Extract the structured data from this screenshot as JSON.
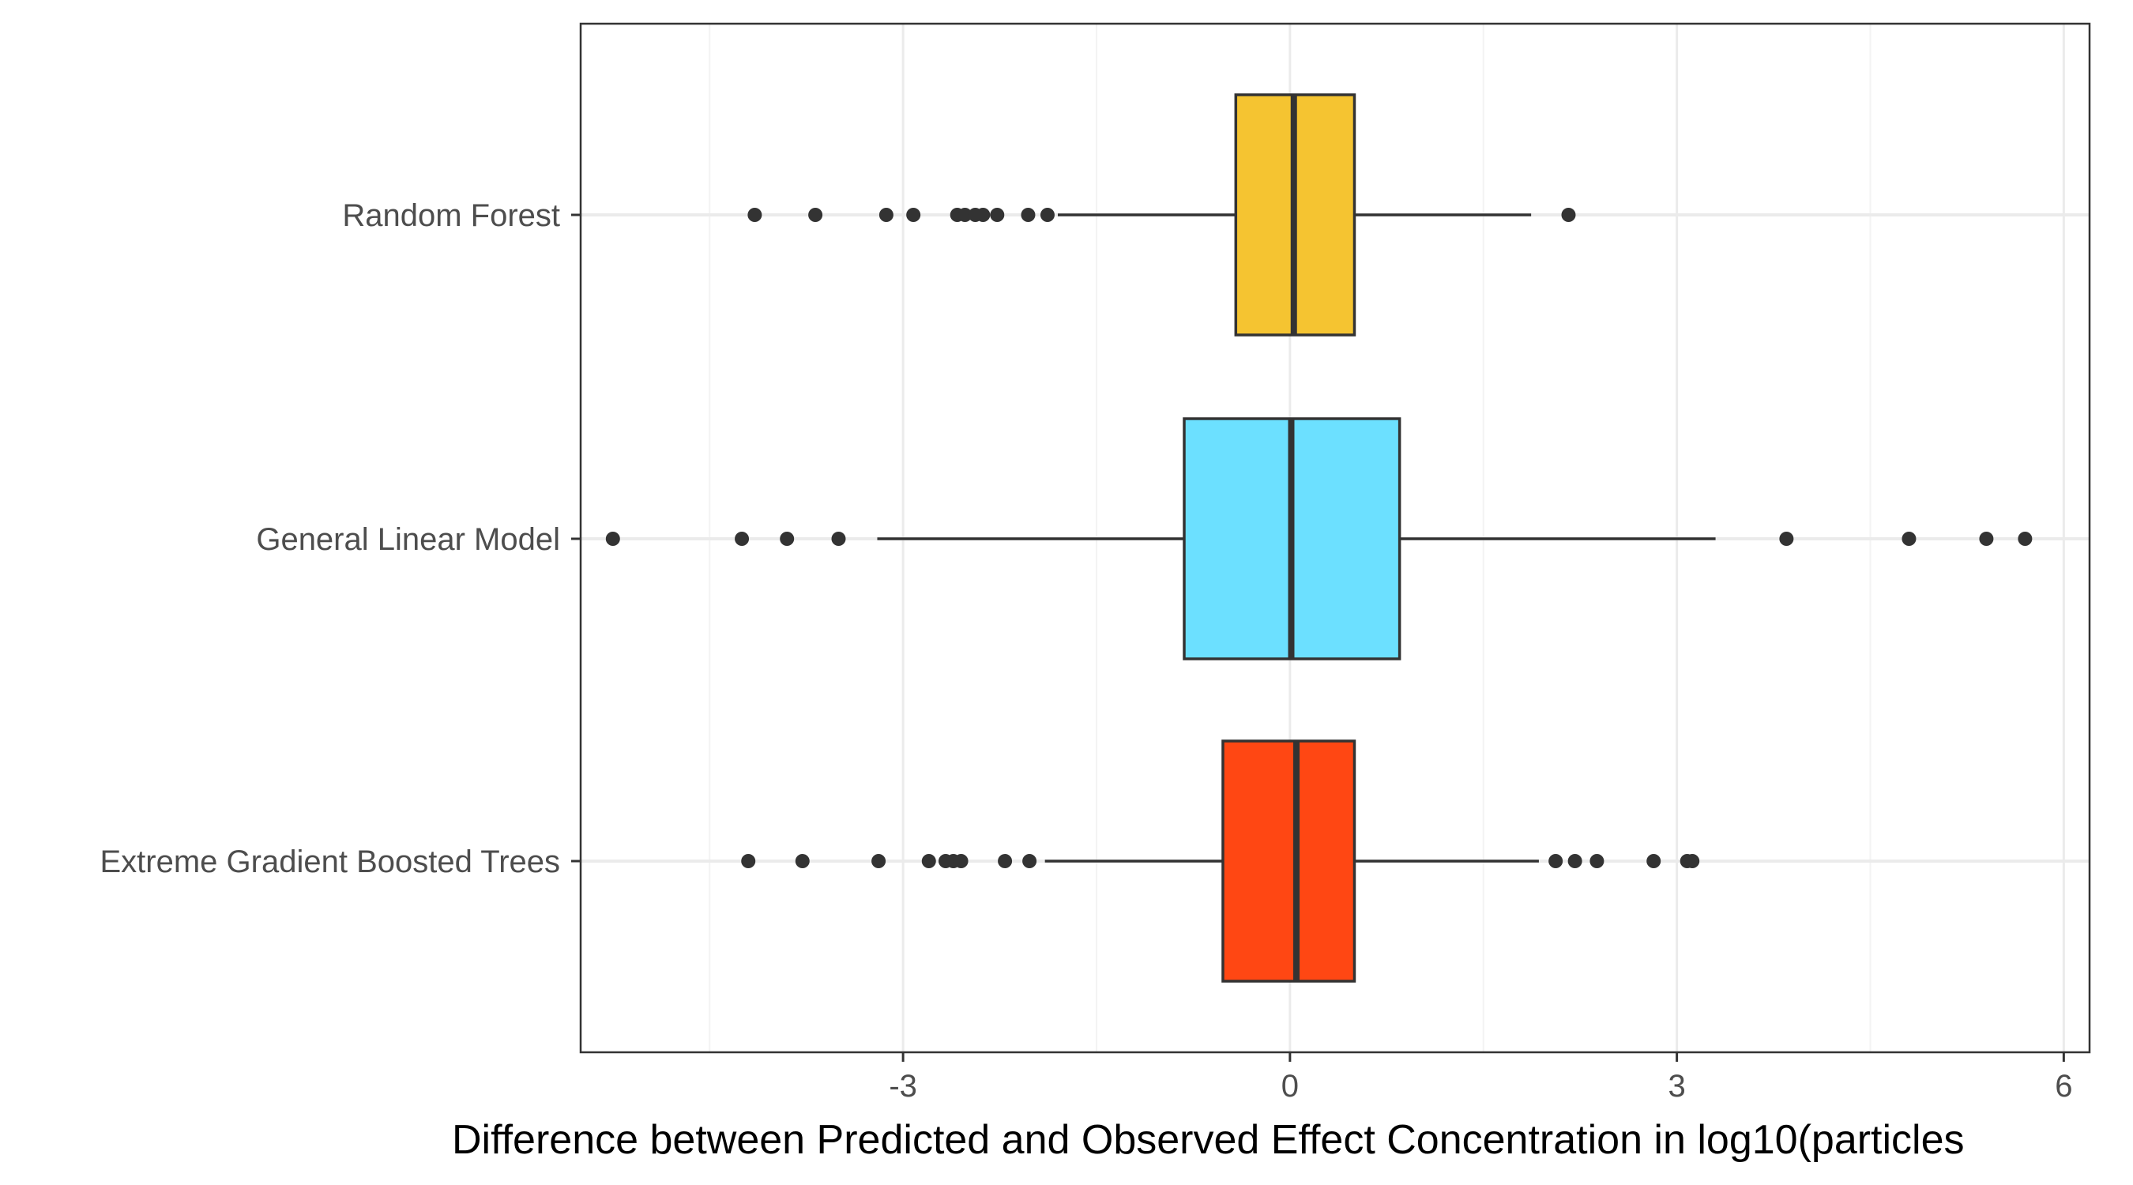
{
  "chart_data": {
    "type": "boxplot",
    "orientation": "horizontal",
    "title": "",
    "xlabel": "Difference between Predicted and Observed Effect Concentration in log10(particles",
    "ylabel": "",
    "xlim": [
      -5.5,
      6.2
    ],
    "xticks": [
      -3,
      0,
      3,
      6
    ],
    "xtick_labels": [
      "-3",
      "0",
      "3",
      "6"
    ],
    "grid": true,
    "legend": "none",
    "categories": [
      "Random Forest",
      "General Linear Model",
      "Extreme Gradient Boosted Trees"
    ],
    "series": [
      {
        "category": "Random Forest",
        "color": "#F5C431",
        "whisker_low": -1.8,
        "q1": -0.42,
        "median": 0.03,
        "q3": 0.5,
        "whisker_high": 1.87,
        "outliers": [
          -4.15,
          -3.68,
          -3.13,
          -2.92,
          -2.58,
          -2.52,
          -2.44,
          -2.38,
          -2.27,
          -2.03,
          -1.88,
          2.16
        ]
      },
      {
        "category": "General Linear Model",
        "color": "#6CE0FF",
        "whisker_low": -3.2,
        "q1": -0.82,
        "median": 0.01,
        "q3": 0.85,
        "whisker_high": 3.3,
        "outliers": [
          -5.25,
          -4.25,
          -3.9,
          -3.5,
          3.85,
          4.8,
          5.4,
          5.7
        ]
      },
      {
        "category": "Extreme Gradient Boosted Trees",
        "color": "#FF4713",
        "whisker_low": -1.9,
        "q1": -0.52,
        "median": 0.05,
        "q3": 0.5,
        "whisker_high": 1.93,
        "outliers": [
          -4.2,
          -3.78,
          -3.19,
          -2.8,
          -2.67,
          -2.61,
          -2.55,
          -2.21,
          -2.02,
          2.06,
          2.21,
          2.38,
          2.82,
          3.08,
          3.12
        ]
      }
    ]
  },
  "colors": {
    "background": "#ffffff",
    "panel_border": "#333333",
    "grid_major": "#ebebeb",
    "grid_minor": "#f3f3f3",
    "box_outline": "#333333",
    "outlier": "#333333"
  }
}
